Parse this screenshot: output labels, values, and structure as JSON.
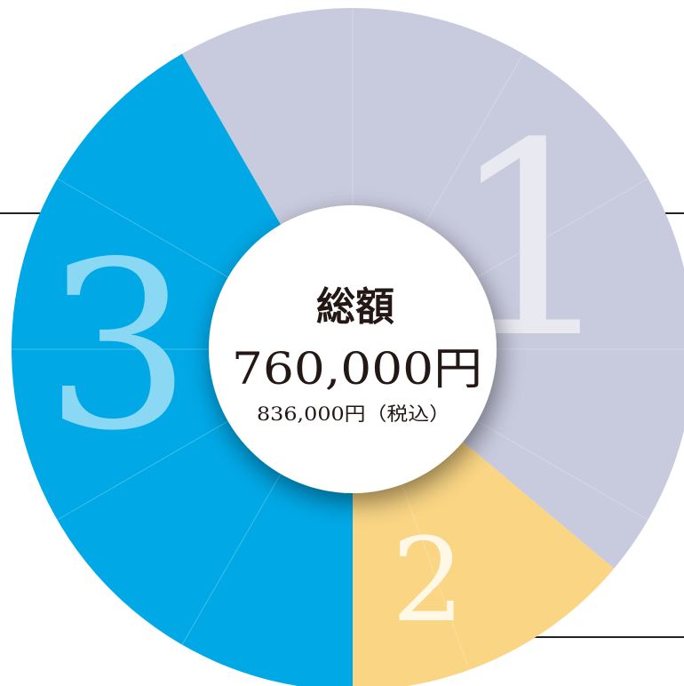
{
  "chart_data": {
    "type": "pie",
    "segments": [
      {
        "label": "1",
        "color": "#c8cade",
        "label_color": "#e8e9f1",
        "start_deg": -30,
        "end_deg": 130
      },
      {
        "label": "2",
        "color": "#f9d584",
        "label_color": "#fff8e6",
        "start_deg": 130,
        "end_deg": 180
      },
      {
        "label": "3",
        "color": "#00a8e6",
        "label_color": "#8ad8f4",
        "start_deg": 180,
        "end_deg": 330
      }
    ],
    "center": {
      "title": "総額",
      "total": "760,000円",
      "tax_included": "836,000円（税込）"
    }
  },
  "colors": {
    "divider": "#ffffff",
    "frame_lines": "#222222",
    "center_fill": "#ffffff",
    "center_text": "#231815"
  }
}
